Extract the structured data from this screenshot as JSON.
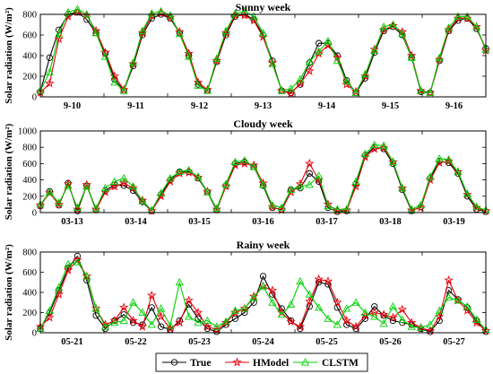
{
  "colors": {
    "true": "#000000",
    "hmodel": "#e8000b",
    "clstm": "#00d000"
  },
  "legend": [
    {
      "key": "true",
      "label": "True",
      "marker": "circle"
    },
    {
      "key": "hmodel",
      "label": "HModel",
      "marker": "star"
    },
    {
      "key": "clstm",
      "label": "CLSTM",
      "marker": "triangle"
    }
  ],
  "chart_data": [
    {
      "type": "line",
      "title": "Sunny week",
      "ylabel": "Solar radiation (W/m²)",
      "ylim": [
        0,
        800
      ],
      "yticks": [
        0,
        200,
        400,
        600,
        800
      ],
      "x_count": 49,
      "day_labels": [
        "9-10",
        "9-11",
        "9-12",
        "9-13",
        "9-14",
        "9-15",
        "9-16"
      ],
      "series": [
        {
          "key": "true",
          "name": "True",
          "values": [
            50,
            380,
            650,
            800,
            820,
            750,
            620,
            420,
            170,
            60,
            300,
            600,
            760,
            800,
            760,
            620,
            400,
            120,
            60,
            340,
            600,
            780,
            800,
            750,
            600,
            350,
            60,
            40,
            120,
            330,
            520,
            520,
            400,
            160,
            40,
            180,
            430,
            640,
            680,
            600,
            380,
            50,
            40,
            350,
            640,
            740,
            760,
            660,
            470
          ]
        },
        {
          "key": "hmodel",
          "name": "HModel",
          "values": [
            40,
            130,
            560,
            780,
            820,
            790,
            640,
            430,
            200,
            70,
            320,
            620,
            790,
            810,
            770,
            630,
            420,
            140,
            70,
            350,
            620,
            790,
            790,
            740,
            580,
            330,
            60,
            30,
            130,
            250,
            420,
            500,
            380,
            120,
            50,
            200,
            460,
            650,
            690,
            630,
            400,
            60,
            40,
            360,
            650,
            760,
            760,
            680,
            450
          ]
        },
        {
          "key": "clstm",
          "name": "CLSTM",
          "values": [
            60,
            240,
            610,
            820,
            850,
            800,
            620,
            390,
            140,
            60,
            330,
            640,
            810,
            830,
            790,
            610,
            390,
            110,
            60,
            370,
            640,
            810,
            830,
            780,
            620,
            320,
            60,
            80,
            170,
            340,
            440,
            540,
            350,
            150,
            40,
            220,
            450,
            680,
            700,
            610,
            380,
            60,
            40,
            380,
            670,
            780,
            780,
            680,
            460
          ]
        }
      ]
    },
    {
      "type": "line",
      "title": "Cloudy week",
      "ylabel": "Solar radiation (W/m²)",
      "ylim": [
        0,
        1000
      ],
      "yticks": [
        0,
        200,
        400,
        600,
        800,
        1000
      ],
      "x_count": 49,
      "day_labels": [
        "03-13",
        "03-14",
        "03-15",
        "03-16",
        "03-17",
        "03-18",
        "03-19"
      ],
      "series": [
        {
          "key": "true",
          "name": "True",
          "values": [
            80,
            260,
            90,
            360,
            20,
            330,
            30,
            270,
            340,
            330,
            270,
            130,
            20,
            220,
            400,
            500,
            500,
            420,
            250,
            30,
            330,
            600,
            620,
            560,
            330,
            60,
            40,
            280,
            300,
            480,
            380,
            60,
            10,
            20,
            350,
            700,
            800,
            780,
            600,
            280,
            20,
            70,
            420,
            630,
            610,
            480,
            200,
            40,
            10
          ]
        },
        {
          "key": "hmodel",
          "name": "HModel",
          "values": [
            90,
            240,
            100,
            350,
            40,
            340,
            40,
            250,
            320,
            360,
            300,
            150,
            20,
            200,
            380,
            480,
            490,
            430,
            260,
            40,
            320,
            580,
            600,
            580,
            360,
            70,
            30,
            250,
            350,
            600,
            400,
            100,
            20,
            30,
            320,
            680,
            780,
            790,
            620,
            300,
            30,
            60,
            400,
            610,
            630,
            500,
            220,
            60,
            20
          ]
        },
        {
          "key": "clstm",
          "name": "CLSTM",
          "values": [
            100,
            250,
            120,
            330,
            60,
            320,
            50,
            300,
            380,
            420,
            320,
            140,
            30,
            240,
            420,
            500,
            520,
            440,
            250,
            50,
            350,
            620,
            640,
            560,
            340,
            90,
            60,
            280,
            320,
            340,
            450,
            80,
            40,
            40,
            380,
            720,
            830,
            820,
            620,
            300,
            40,
            90,
            440,
            660,
            650,
            500,
            230,
            70,
            30
          ]
        }
      ]
    },
    {
      "type": "line",
      "title": "Rainy week",
      "ylabel": "Solar radiation (W/m²)",
      "ylim": [
        0,
        800
      ],
      "yticks": [
        0,
        200,
        400,
        600,
        800
      ],
      "x_count": 49,
      "day_labels": [
        "05-21",
        "05-22",
        "05-23",
        "05-24",
        "05-25",
        "05-26",
        "05-27"
      ],
      "series": [
        {
          "key": "true",
          "name": "True",
          "values": [
            40,
            200,
            420,
            640,
            760,
            520,
            170,
            40,
            120,
            180,
            100,
            80,
            250,
            60,
            30,
            120,
            280,
            140,
            40,
            10,
            80,
            140,
            200,
            300,
            560,
            380,
            240,
            120,
            40,
            260,
            500,
            480,
            250,
            80,
            40,
            140,
            260,
            170,
            120,
            100,
            80,
            40,
            10,
            120,
            420,
            330,
            250,
            120,
            10
          ]
        },
        {
          "key": "hmodel",
          "name": "HModel",
          "values": [
            60,
            150,
            380,
            620,
            720,
            560,
            240,
            80,
            120,
            250,
            120,
            60,
            370,
            160,
            40,
            100,
            320,
            200,
            60,
            30,
            100,
            200,
            240,
            360,
            460,
            420,
            200,
            110,
            60,
            310,
            530,
            510,
            300,
            120,
            60,
            170,
            200,
            180,
            150,
            230,
            100,
            50,
            20,
            160,
            520,
            320,
            220,
            100,
            20
          ]
        },
        {
          "key": "clstm",
          "name": "CLSTM",
          "values": [
            40,
            220,
            450,
            680,
            700,
            560,
            240,
            60,
            100,
            120,
            300,
            200,
            80,
            240,
            70,
            500,
            160,
            100,
            120,
            60,
            110,
            220,
            240,
            350,
            460,
            300,
            180,
            280,
            510,
            380,
            250,
            140,
            80,
            240,
            300,
            200,
            160,
            90,
            260,
            130,
            60,
            50,
            80,
            220,
            350,
            320,
            260,
            130,
            30
          ]
        }
      ]
    }
  ]
}
